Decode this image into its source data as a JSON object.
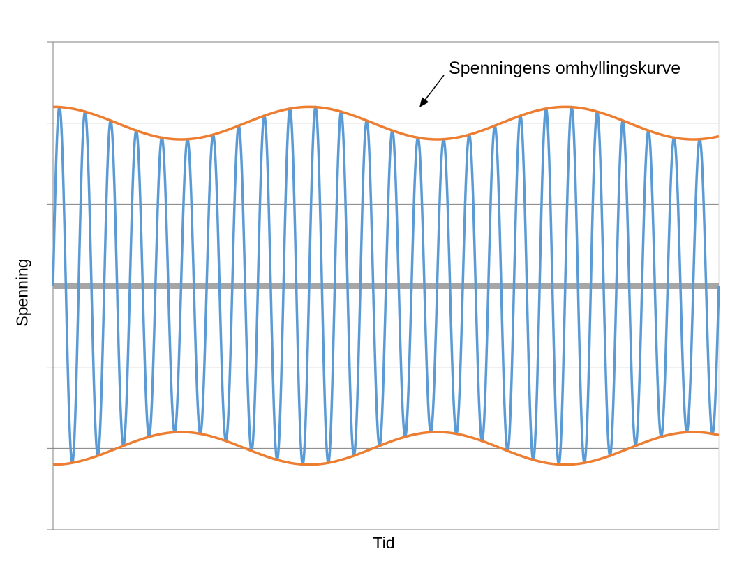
{
  "chart_data": {
    "type": "line",
    "title": "",
    "xlabel": "Tid",
    "ylabel": "Spenning",
    "annotation": "Spenningens omhyllingskurve",
    "grid": true,
    "ylim": [
      -1.5,
      1.5
    ],
    "xlim": [
      0,
      13
    ],
    "yticks": [
      -1.5,
      -1.0,
      -0.5,
      0,
      0.5,
      1.0,
      1.5
    ],
    "zero_line": 0,
    "carrier": {
      "cycles": 26,
      "mean_amplitude": 1.0,
      "modulation_depth": 0.1,
      "envelope_periods": 2.6,
      "phase_deg": 0,
      "color": "#5b9bd5"
    },
    "envelope": {
      "show_upper": true,
      "show_lower": true,
      "color": "#ed7d31"
    },
    "colors": {
      "grid": "#808080",
      "axis": "#808080",
      "zero_line": "#a6a6a6"
    }
  }
}
